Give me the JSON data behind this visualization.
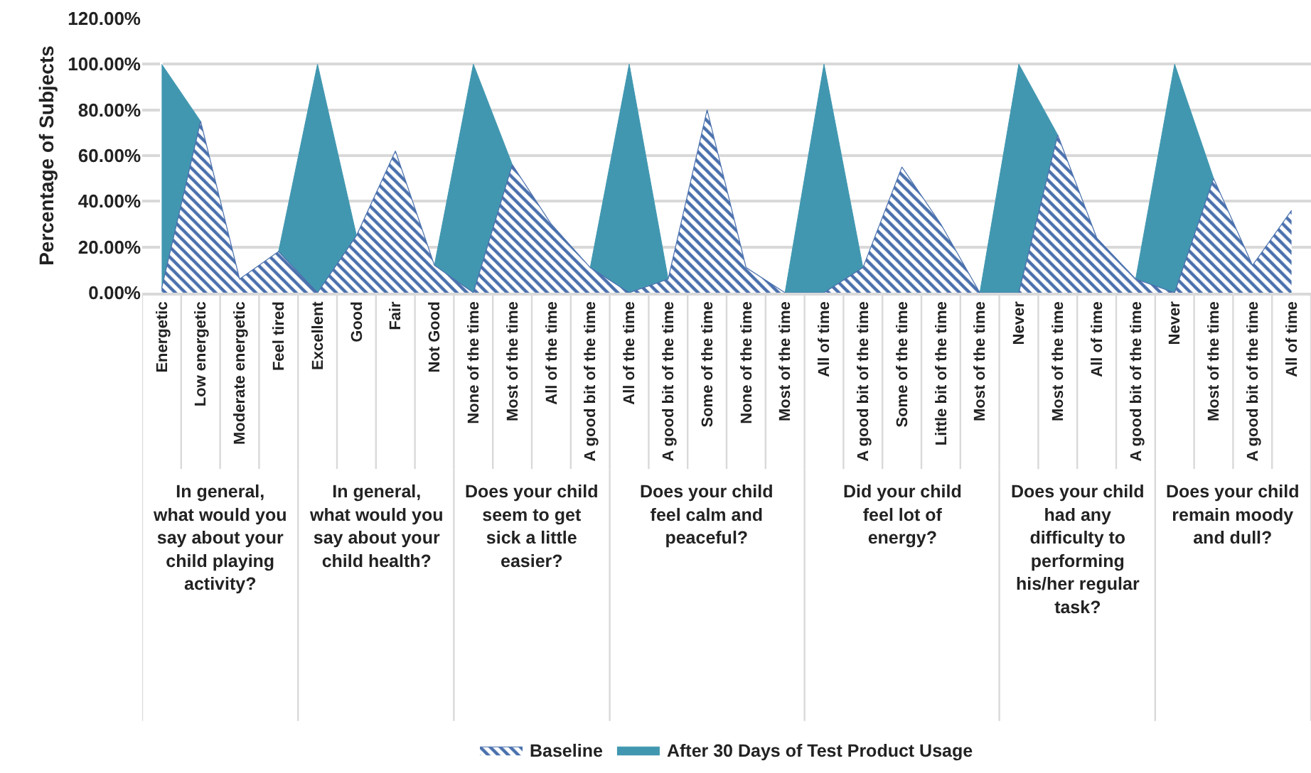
{
  "chart_data": {
    "type": "area",
    "ylabel": "Percentage of Subjects",
    "categories": [
      "Energetic",
      "Low energetic",
      "Moderate energetic",
      "Feel tired",
      "Excellent",
      "Good",
      "Fair",
      "Not Good",
      "None of the time",
      "Most of the time",
      "All of the time",
      "A good bit of the time",
      "All of the time",
      "A good bit of the time",
      "Some of the time",
      "None of the time",
      "Most of the time",
      "All of time",
      "A good bit of the time",
      "Some of the time",
      "Little bit of the time",
      "Most of the time",
      "Never",
      "Most of the time",
      "All of time",
      "A good bit of the time",
      "Never",
      "Most of the time",
      "A good bit of the time",
      "All of time"
    ],
    "series": [
      {
        "name": "Baseline",
        "color": "#4a70ad",
        "values": [
          2,
          75,
          6,
          18,
          0,
          25,
          62,
          12,
          0,
          56,
          30,
          11,
          0,
          6,
          80,
          11,
          0,
          0,
          11,
          55,
          30,
          0,
          0,
          69,
          24,
          6,
          0,
          50,
          12,
          36
        ]
      },
      {
        "name": "After 30 Days of Test Product Usage",
        "color": "#4197b0",
        "values": [
          100,
          75,
          null,
          18,
          100,
          25,
          null,
          12,
          100,
          56,
          null,
          11,
          100,
          6,
          null,
          null,
          0,
          100,
          11,
          null,
          null,
          0,
          100,
          69,
          null,
          6,
          100,
          50,
          null,
          null
        ]
      }
    ],
    "annotations": [
      "In general, what would you say about your child playing activity?",
      "In general, what would you say about your child health?",
      "Does your child seem to get sick a little easier?",
      "Does your child feel calm and peaceful?",
      "Did your child feel lot of energy?",
      "Does your child had any difficulty to performing his/her regular task?",
      "Does your child remain moody and dull?"
    ],
    "ylim": [
      0,
      120
    ],
    "yticks": [
      {
        "value": 0,
        "label": "0.00%"
      },
      {
        "value": 20,
        "label": "20.00%"
      },
      {
        "value": 40,
        "label": "40.00%"
      },
      {
        "value": 60,
        "label": "60.00%"
      },
      {
        "value": 80,
        "label": "80.00%"
      },
      {
        "value": 100,
        "label": "100.00%"
      },
      {
        "value": 120,
        "label": "120.00%"
      }
    ],
    "grid": "y",
    "legend": "bottom"
  }
}
